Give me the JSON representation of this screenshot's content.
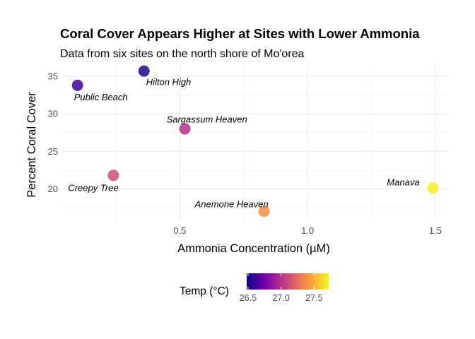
{
  "chart_data": {
    "type": "scatter",
    "title": "Coral Cover Appears Higher at Sites with Lower Ammonia",
    "subtitle": "Data from six sites on the north shore of Mo'orea",
    "xlabel": "Ammonia Concentration (µM)",
    "ylabel": "Percent Coral Cover",
    "xlim": [
      0.04,
      1.55
    ],
    "ylim": [
      15.8,
      36.7
    ],
    "x_ticks": [
      0.5,
      1.0,
      1.5
    ],
    "x_tick_labels": [
      "0.5",
      "1.0",
      "1.5"
    ],
    "y_ticks": [
      20,
      25,
      30,
      35
    ],
    "y_tick_labels": [
      "20",
      "25",
      "30",
      "35"
    ],
    "grid": true,
    "points": [
      {
        "label": "Public Beach",
        "x": 0.1,
        "y": 33.8,
        "temp": 26.62
      },
      {
        "label": "Hilton High",
        "x": 0.36,
        "y": 35.7,
        "temp": 26.53
      },
      {
        "label": "Sargassum Heaven",
        "x": 0.52,
        "y": 28.0,
        "temp": 27.0
      },
      {
        "label": "Creepy Tree",
        "x": 0.24,
        "y": 21.8,
        "temp": 27.12
      },
      {
        "label": "Anemone Heaven",
        "x": 0.83,
        "y": 17.0,
        "temp": 27.38
      },
      {
        "label": "Manava",
        "x": 1.49,
        "y": 20.1,
        "temp": 27.68
      }
    ],
    "legend": {
      "title": "Temp (°C)",
      "position": "bottom",
      "color_min": 26.48,
      "color_max": 27.72,
      "ticks": [
        26.5,
        27.0,
        27.5
      ],
      "tick_labels": [
        "26.5",
        "27.0",
        "27.5"
      ]
    },
    "colormap": [
      "#0d0887",
      "#6a00a8",
      "#b12a90",
      "#e16462",
      "#fca636",
      "#f0f921"
    ]
  }
}
